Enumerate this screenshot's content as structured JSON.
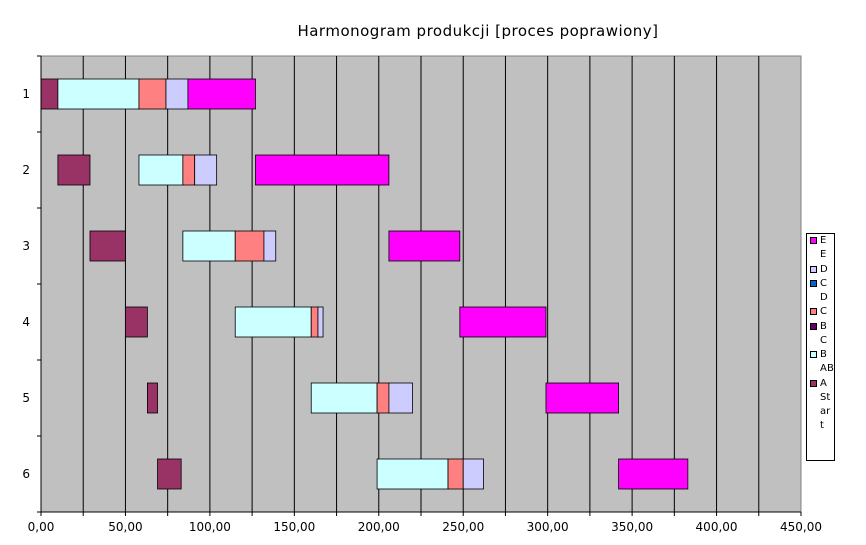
{
  "chart_data": {
    "type": "bar",
    "orientation": "horizontal-stacked-gantt",
    "title": "Harmonogram produkcji [proces poprawiony]",
    "xlim": [
      0,
      450
    ],
    "x_tick_step": 25,
    "x_tick_labels": [
      "0,00",
      "50,00",
      "100,00",
      "150,00",
      "200,00",
      "250,00",
      "300,00",
      "350,00",
      "400,00",
      "450,00"
    ],
    "vertical_gridlines": true,
    "plot_background": "#c0c0c0",
    "categories": [
      "1",
      "2",
      "3",
      "4",
      "5",
      "6"
    ],
    "legend_placement": "right",
    "legend_lines": [
      "E",
      "D E",
      "D",
      "C D",
      "C",
      "B C",
      "B",
      "A B",
      "A",
      "St ar t"
    ],
    "series": [
      {
        "name": "A",
        "role": "bar",
        "color": "#993366",
        "values": [
          [
            0,
            10
          ],
          [
            10,
            29
          ],
          [
            29,
            50
          ],
          [
            50,
            63
          ],
          [
            63,
            69
          ],
          [
            69,
            83
          ]
        ]
      },
      {
        "name": "B",
        "role": "bar",
        "color": "#ccffff",
        "values": [
          [
            10,
            58
          ],
          [
            58,
            84
          ],
          [
            84,
            115
          ],
          [
            115,
            160
          ],
          [
            160,
            199
          ],
          [
            199,
            241
          ]
        ]
      },
      {
        "name": "C",
        "role": "bar",
        "color": "#ff8080",
        "values": [
          [
            58,
            74
          ],
          [
            84,
            91
          ],
          [
            115,
            132
          ],
          [
            160,
            164
          ],
          [
            199,
            206
          ],
          [
            241,
            250
          ]
        ]
      },
      {
        "name": "D",
        "role": "bar",
        "color": "#ccccff",
        "values": [
          [
            74,
            87
          ],
          [
            91,
            104
          ],
          [
            132,
            139
          ],
          [
            164,
            167
          ],
          [
            206,
            220
          ],
          [
            250,
            262
          ]
        ]
      },
      {
        "name": "E",
        "role": "bar",
        "color": "#ff00ff",
        "values": [
          [
            87,
            127
          ],
          [
            127,
            206
          ],
          [
            206,
            248
          ],
          [
            248,
            299
          ],
          [
            299,
            342
          ],
          [
            342,
            383
          ]
        ]
      },
      {
        "name": "B C",
        "role": "legend-only",
        "color": "#660066"
      },
      {
        "name": "C D",
        "role": "legend-only",
        "color": "#0066cc"
      }
    ]
  },
  "legend": [
    {
      "line1": "E",
      "line2": "",
      "color": "#ff00ff"
    },
    {
      "line1": "D",
      "line2": "E",
      "color": "#ccccff"
    },
    {
      "line1": "C",
      "line2": "D",
      "color": "#0066cc"
    },
    {
      "line1": "C",
      "line2": "",
      "color": "#ff8080"
    },
    {
      "line1": "B",
      "line2": "C",
      "color": "#660066"
    },
    {
      "line1": "B",
      "line2": "",
      "color": "#ccffff"
    },
    {
      "line1": "A",
      "line2": "B",
      "color": "#993366"
    },
    {
      "line1": "A",
      "line2": "",
      "color": "#993366"
    },
    {
      "line1": "St",
      "line2": "ar",
      "color": ""
    },
    {
      "line1": "t",
      "line2": "",
      "color": ""
    }
  ]
}
